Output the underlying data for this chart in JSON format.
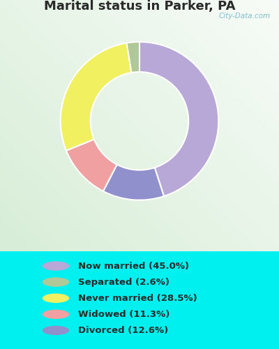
{
  "title": "Marital status in Parker, PA",
  "title_color": "#2a2a2a",
  "background_color": "#00f0f0",
  "chart_bg_color": "#d8edd8",
  "categories": [
    "Now married",
    "Separated",
    "Never married",
    "Widowed",
    "Divorced"
  ],
  "values": [
    45.0,
    2.6,
    28.5,
    11.3,
    12.6
  ],
  "colors": [
    "#b8a8d8",
    "#b0c898",
    "#f0f060",
    "#f0a0a0",
    "#9090cc"
  ],
  "legend_labels": [
    "Now married (45.0%)",
    "Separated (2.6%)",
    "Never married (28.5%)",
    "Widowed (11.3%)",
    "Divorced (12.6%)"
  ],
  "wedge_order": [
    0,
    4,
    3,
    2,
    1
  ],
  "donut_width": 0.38,
  "watermark": "City-Data.com"
}
